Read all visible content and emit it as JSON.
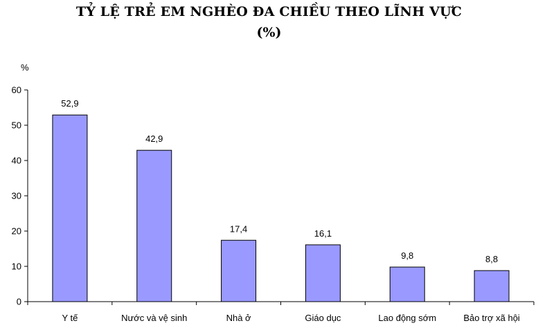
{
  "chart_data": {
    "type": "bar",
    "title": "TỶ LỆ TRẺ EM NGHÈO ĐA CHIỀU THEO LĨNH VỰC",
    "subtitle": "(%)",
    "ylabel": "%",
    "xlabel": "",
    "ylim": [
      0,
      60
    ],
    "yticks": [
      0,
      10,
      20,
      30,
      40,
      50,
      60
    ],
    "categories": [
      "Y tế",
      "Nước và vệ sinh",
      "Nhà ở",
      "Giáo dục",
      "Lao động sớm",
      "Bảo trợ xã hội"
    ],
    "values": [
      52.9,
      42.9,
      17.4,
      16.1,
      9.8,
      8.8
    ],
    "value_labels": [
      "52,9",
      "42,9",
      "17,4",
      "16,1",
      "9,8",
      "8,8"
    ],
    "grid": false,
    "legend": "none",
    "colors": {
      "bar_fill": "#9999ff",
      "bar_stroke": "#000000"
    }
  }
}
